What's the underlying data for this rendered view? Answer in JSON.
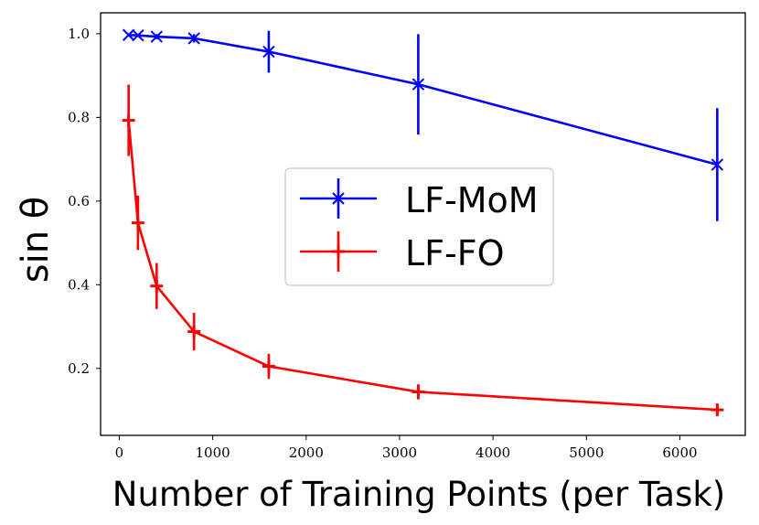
{
  "chart_data": {
    "type": "line",
    "title": "",
    "xlabel": "Number of Training Points (per Task)",
    "ylabel": "sin θ",
    "xlim": [
      -200,
      6700
    ],
    "ylim": [
      0.04,
      1.05
    ],
    "x_ticks": [
      0,
      1000,
      2000,
      3000,
      4000,
      5000,
      6000
    ],
    "x_tick_labels": [
      "0",
      "1000",
      "2000",
      "3000",
      "4000",
      "5000",
      "6000"
    ],
    "y_ticks": [
      0.2,
      0.4,
      0.6,
      0.8,
      1.0
    ],
    "y_tick_labels": [
      "0.2",
      "0.4",
      "0.6",
      "0.8",
      "1.0"
    ],
    "grid": false,
    "legend_position": "center",
    "series": [
      {
        "name": "LF-MoM",
        "color": "#0000ff",
        "marker": "x",
        "x": [
          100,
          200,
          400,
          800,
          1600,
          3200,
          6400
        ],
        "y": [
          0.997,
          0.996,
          0.993,
          0.989,
          0.957,
          0.879,
          0.687
        ],
        "yerr": [
          0.004,
          0.004,
          0.006,
          0.01,
          0.05,
          0.12,
          0.135
        ]
      },
      {
        "name": "LF-FO",
        "color": "#ff0000",
        "marker": "+",
        "x": [
          100,
          200,
          400,
          800,
          1600,
          3200,
          6400
        ],
        "y": [
          0.793,
          0.548,
          0.397,
          0.288,
          0.205,
          0.144,
          0.101
        ],
        "yerr": [
          0.085,
          0.065,
          0.055,
          0.045,
          0.03,
          0.018,
          0.013
        ]
      }
    ]
  }
}
